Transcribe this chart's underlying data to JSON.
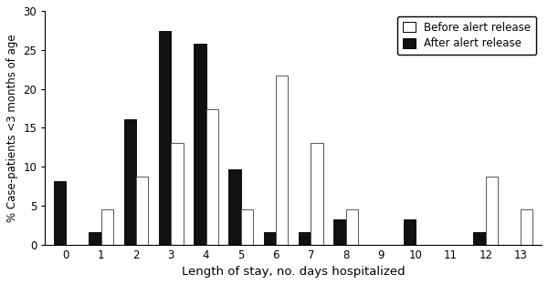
{
  "days": [
    0,
    1,
    2,
    3,
    4,
    5,
    6,
    7,
    8,
    9,
    10,
    11,
    12,
    13
  ],
  "before_alert": [
    0,
    4.5,
    8.7,
    13.0,
    17.4,
    4.5,
    21.7,
    13.0,
    4.5,
    0,
    0,
    0,
    8.7,
    4.5
  ],
  "after_alert": [
    8.1,
    1.6,
    16.1,
    27.4,
    25.8,
    9.7,
    1.6,
    1.6,
    3.2,
    0,
    3.2,
    0,
    1.6,
    0
  ],
  "xlabel": "Length of stay, no. days hospitalized",
  "ylabel": "% Case-patients <3 months of age",
  "ylim": [
    0,
    30
  ],
  "yticks": [
    0,
    5,
    10,
    15,
    20,
    25,
    30
  ],
  "bar_width": 0.35,
  "before_color": "white",
  "before_edgecolor": "#555555",
  "after_color": "#111111",
  "after_edgecolor": "#111111",
  "legend_before": "Before alert release",
  "legend_after": "After alert release",
  "background_color": "white"
}
